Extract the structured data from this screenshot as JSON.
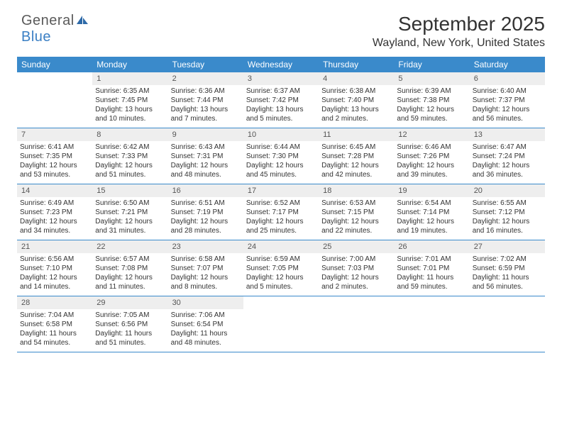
{
  "logo": {
    "text1": "General",
    "text2": "Blue"
  },
  "title": "September 2025",
  "location": "Wayland, New York, United States",
  "colors": {
    "header_bg": "#3a8acb",
    "header_text": "#ffffff",
    "daynum_bg": "#eeeeee",
    "text": "#333333",
    "rule": "#3a8acb",
    "logo_gray": "#5a5a5a",
    "logo_blue": "#3a7fc4"
  },
  "typography": {
    "title_fontsize": 28,
    "location_fontsize": 16,
    "header_fontsize": 12,
    "body_fontsize": 10
  },
  "headers": [
    "Sunday",
    "Monday",
    "Tuesday",
    "Wednesday",
    "Thursday",
    "Friday",
    "Saturday"
  ],
  "weeks": [
    [
      {
        "n": "",
        "sr": "",
        "ss": "",
        "dl": ""
      },
      {
        "n": "1",
        "sr": "Sunrise: 6:35 AM",
        "ss": "Sunset: 7:45 PM",
        "dl": "Daylight: 13 hours and 10 minutes."
      },
      {
        "n": "2",
        "sr": "Sunrise: 6:36 AM",
        "ss": "Sunset: 7:44 PM",
        "dl": "Daylight: 13 hours and 7 minutes."
      },
      {
        "n": "3",
        "sr": "Sunrise: 6:37 AM",
        "ss": "Sunset: 7:42 PM",
        "dl": "Daylight: 13 hours and 5 minutes."
      },
      {
        "n": "4",
        "sr": "Sunrise: 6:38 AM",
        "ss": "Sunset: 7:40 PM",
        "dl": "Daylight: 13 hours and 2 minutes."
      },
      {
        "n": "5",
        "sr": "Sunrise: 6:39 AM",
        "ss": "Sunset: 7:38 PM",
        "dl": "Daylight: 12 hours and 59 minutes."
      },
      {
        "n": "6",
        "sr": "Sunrise: 6:40 AM",
        "ss": "Sunset: 7:37 PM",
        "dl": "Daylight: 12 hours and 56 minutes."
      }
    ],
    [
      {
        "n": "7",
        "sr": "Sunrise: 6:41 AM",
        "ss": "Sunset: 7:35 PM",
        "dl": "Daylight: 12 hours and 53 minutes."
      },
      {
        "n": "8",
        "sr": "Sunrise: 6:42 AM",
        "ss": "Sunset: 7:33 PM",
        "dl": "Daylight: 12 hours and 51 minutes."
      },
      {
        "n": "9",
        "sr": "Sunrise: 6:43 AM",
        "ss": "Sunset: 7:31 PM",
        "dl": "Daylight: 12 hours and 48 minutes."
      },
      {
        "n": "10",
        "sr": "Sunrise: 6:44 AM",
        "ss": "Sunset: 7:30 PM",
        "dl": "Daylight: 12 hours and 45 minutes."
      },
      {
        "n": "11",
        "sr": "Sunrise: 6:45 AM",
        "ss": "Sunset: 7:28 PM",
        "dl": "Daylight: 12 hours and 42 minutes."
      },
      {
        "n": "12",
        "sr": "Sunrise: 6:46 AM",
        "ss": "Sunset: 7:26 PM",
        "dl": "Daylight: 12 hours and 39 minutes."
      },
      {
        "n": "13",
        "sr": "Sunrise: 6:47 AM",
        "ss": "Sunset: 7:24 PM",
        "dl": "Daylight: 12 hours and 36 minutes."
      }
    ],
    [
      {
        "n": "14",
        "sr": "Sunrise: 6:49 AM",
        "ss": "Sunset: 7:23 PM",
        "dl": "Daylight: 12 hours and 34 minutes."
      },
      {
        "n": "15",
        "sr": "Sunrise: 6:50 AM",
        "ss": "Sunset: 7:21 PM",
        "dl": "Daylight: 12 hours and 31 minutes."
      },
      {
        "n": "16",
        "sr": "Sunrise: 6:51 AM",
        "ss": "Sunset: 7:19 PM",
        "dl": "Daylight: 12 hours and 28 minutes."
      },
      {
        "n": "17",
        "sr": "Sunrise: 6:52 AM",
        "ss": "Sunset: 7:17 PM",
        "dl": "Daylight: 12 hours and 25 minutes."
      },
      {
        "n": "18",
        "sr": "Sunrise: 6:53 AM",
        "ss": "Sunset: 7:15 PM",
        "dl": "Daylight: 12 hours and 22 minutes."
      },
      {
        "n": "19",
        "sr": "Sunrise: 6:54 AM",
        "ss": "Sunset: 7:14 PM",
        "dl": "Daylight: 12 hours and 19 minutes."
      },
      {
        "n": "20",
        "sr": "Sunrise: 6:55 AM",
        "ss": "Sunset: 7:12 PM",
        "dl": "Daylight: 12 hours and 16 minutes."
      }
    ],
    [
      {
        "n": "21",
        "sr": "Sunrise: 6:56 AM",
        "ss": "Sunset: 7:10 PM",
        "dl": "Daylight: 12 hours and 14 minutes."
      },
      {
        "n": "22",
        "sr": "Sunrise: 6:57 AM",
        "ss": "Sunset: 7:08 PM",
        "dl": "Daylight: 12 hours and 11 minutes."
      },
      {
        "n": "23",
        "sr": "Sunrise: 6:58 AM",
        "ss": "Sunset: 7:07 PM",
        "dl": "Daylight: 12 hours and 8 minutes."
      },
      {
        "n": "24",
        "sr": "Sunrise: 6:59 AM",
        "ss": "Sunset: 7:05 PM",
        "dl": "Daylight: 12 hours and 5 minutes."
      },
      {
        "n": "25",
        "sr": "Sunrise: 7:00 AM",
        "ss": "Sunset: 7:03 PM",
        "dl": "Daylight: 12 hours and 2 minutes."
      },
      {
        "n": "26",
        "sr": "Sunrise: 7:01 AM",
        "ss": "Sunset: 7:01 PM",
        "dl": "Daylight: 11 hours and 59 minutes."
      },
      {
        "n": "27",
        "sr": "Sunrise: 7:02 AM",
        "ss": "Sunset: 6:59 PM",
        "dl": "Daylight: 11 hours and 56 minutes."
      }
    ],
    [
      {
        "n": "28",
        "sr": "Sunrise: 7:04 AM",
        "ss": "Sunset: 6:58 PM",
        "dl": "Daylight: 11 hours and 54 minutes."
      },
      {
        "n": "29",
        "sr": "Sunrise: 7:05 AM",
        "ss": "Sunset: 6:56 PM",
        "dl": "Daylight: 11 hours and 51 minutes."
      },
      {
        "n": "30",
        "sr": "Sunrise: 7:06 AM",
        "ss": "Sunset: 6:54 PM",
        "dl": "Daylight: 11 hours and 48 minutes."
      },
      {
        "n": "",
        "sr": "",
        "ss": "",
        "dl": ""
      },
      {
        "n": "",
        "sr": "",
        "ss": "",
        "dl": ""
      },
      {
        "n": "",
        "sr": "",
        "ss": "",
        "dl": ""
      },
      {
        "n": "",
        "sr": "",
        "ss": "",
        "dl": ""
      }
    ]
  ]
}
